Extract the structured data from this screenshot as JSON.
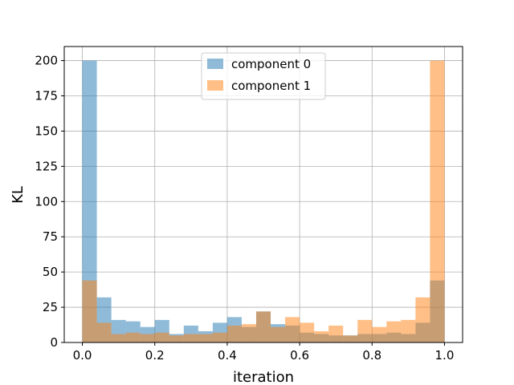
{
  "chart_data": {
    "type": "bar",
    "xlabel": "iteration",
    "ylabel": "KL",
    "xlim": [
      -0.05,
      1.05
    ],
    "ylim": [
      0,
      210
    ],
    "xticks": [
      0.0,
      0.2,
      0.4,
      0.6,
      0.8,
      1.0
    ],
    "xtick_labels": [
      "0.0",
      "0.2",
      "0.4",
      "0.6",
      "0.8",
      "1.0"
    ],
    "yticks": [
      0,
      25,
      50,
      75,
      100,
      125,
      150,
      175,
      200
    ],
    "ytick_labels": [
      "0",
      "25",
      "50",
      "75",
      "100",
      "125",
      "150",
      "175",
      "200"
    ],
    "grid": true,
    "legend_position": "top-center",
    "bin_edges": [
      0.0,
      0.04,
      0.08,
      0.12,
      0.16,
      0.2,
      0.24,
      0.28,
      0.32,
      0.36,
      0.4,
      0.44,
      0.48,
      0.52,
      0.56,
      0.6,
      0.64,
      0.68,
      0.72,
      0.76,
      0.8,
      0.84,
      0.88,
      0.92,
      0.96,
      1.0
    ],
    "series": [
      {
        "name": "component 0",
        "color": "#1f77b4",
        "alpha": 0.5,
        "values": [
          200,
          32,
          16,
          15,
          11,
          16,
          6,
          12,
          8,
          14,
          18,
          11,
          22,
          13,
          12,
          7,
          6,
          5,
          5,
          6,
          6,
          7,
          6,
          14,
          44
        ]
      },
      {
        "name": "component 1",
        "color": "#ff7f0e",
        "alpha": 0.5,
        "values": [
          44,
          14,
          6,
          7,
          6,
          7,
          5,
          6,
          6,
          7,
          12,
          13,
          22,
          11,
          18,
          14,
          8,
          12,
          5,
          16,
          11,
          15,
          16,
          32,
          200
        ]
      }
    ]
  }
}
